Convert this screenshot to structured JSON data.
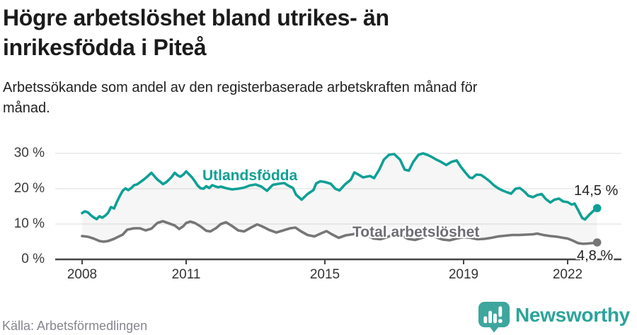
{
  "header": {
    "title_lines": [
      "Högre arbetslöshet bland utrikes- än",
      "inrikesfödda i Piteå"
    ],
    "subtitle_lines": [
      "Arbetssökande som andel av den registerbaserade arbetskraften månad för",
      "månad."
    ]
  },
  "chart_data": {
    "type": "line",
    "title": "Högre arbetslöshet bland utrikes- än inrikesfödda i Piteå",
    "subtitle": "Arbetssökande som andel av den registerbaserade arbetskraften månad för månad.",
    "unit": "%",
    "grid": true,
    "legend_position": "inline-labels",
    "x_axis": {
      "range": [
        2008.0,
        2023.0
      ],
      "ticks": [
        2008,
        2011,
        2015,
        2019,
        2022
      ],
      "tick_labels": [
        "2008",
        "2011",
        "2015",
        "2019",
        "2022"
      ]
    },
    "y_axis": {
      "range": [
        0,
        32
      ],
      "ticks": [
        0,
        10,
        20,
        30
      ],
      "tick_labels": [
        "0 %",
        "10 %",
        "20 %",
        "30 %"
      ]
    },
    "colors": {
      "grid": "#e3e3e3",
      "axis": "#454545",
      "fill_between": "rgba(130,130,130,0.07)"
    },
    "series": [
      {
        "name": "Utlandsfödda",
        "color": "#0fa095",
        "label_color": "#0fa095",
        "end_label": "14,5 %",
        "end_value": 14.5,
        "points": [
          [
            2008.0,
            13.1
          ],
          [
            2008.08,
            13.6
          ],
          [
            2008.17,
            13.3
          ],
          [
            2008.25,
            12.5
          ],
          [
            2008.33,
            11.9
          ],
          [
            2008.42,
            11.4
          ],
          [
            2008.5,
            12.2
          ],
          [
            2008.58,
            11.8
          ],
          [
            2008.67,
            12.4
          ],
          [
            2008.75,
            13.2
          ],
          [
            2008.83,
            14.8
          ],
          [
            2008.92,
            14.4
          ],
          [
            2009.0,
            16.2
          ],
          [
            2009.08,
            17.8
          ],
          [
            2009.17,
            19.4
          ],
          [
            2009.25,
            20.1
          ],
          [
            2009.33,
            19.6
          ],
          [
            2009.42,
            20.2
          ],
          [
            2009.5,
            21.0
          ],
          [
            2009.58,
            21.2
          ],
          [
            2009.67,
            21.8
          ],
          [
            2009.75,
            22.4
          ],
          [
            2009.83,
            23.0
          ],
          [
            2009.92,
            23.8
          ],
          [
            2010.0,
            24.5
          ],
          [
            2010.08,
            23.6
          ],
          [
            2010.17,
            22.6
          ],
          [
            2010.25,
            22.0
          ],
          [
            2010.33,
            21.3
          ],
          [
            2010.42,
            21.8
          ],
          [
            2010.5,
            22.5
          ],
          [
            2010.58,
            23.3
          ],
          [
            2010.67,
            24.5
          ],
          [
            2010.75,
            23.8
          ],
          [
            2010.83,
            23.4
          ],
          [
            2010.92,
            24.0
          ],
          [
            2011.0,
            24.9
          ],
          [
            2011.08,
            24.1
          ],
          [
            2011.17,
            23.2
          ],
          [
            2011.25,
            22.1
          ],
          [
            2011.33,
            20.9
          ],
          [
            2011.42,
            20.1
          ],
          [
            2011.5,
            20.0
          ],
          [
            2011.58,
            20.7
          ],
          [
            2011.67,
            20.2
          ],
          [
            2011.75,
            21.0
          ],
          [
            2011.83,
            20.7
          ],
          [
            2011.92,
            20.4
          ],
          [
            2012.0,
            20.6
          ],
          [
            2012.17,
            20.1
          ],
          [
            2012.33,
            19.8
          ],
          [
            2012.5,
            20.0
          ],
          [
            2012.67,
            20.3
          ],
          [
            2012.83,
            20.9
          ],
          [
            2013.0,
            21.2
          ],
          [
            2013.17,
            20.6
          ],
          [
            2013.33,
            19.4
          ],
          [
            2013.5,
            21.1
          ],
          [
            2013.67,
            21.4
          ],
          [
            2013.83,
            21.6
          ],
          [
            2013.92,
            21.0
          ],
          [
            2014.08,
            20.2
          ],
          [
            2014.17,
            18.3
          ],
          [
            2014.33,
            16.9
          ],
          [
            2014.5,
            18.5
          ],
          [
            2014.67,
            19.6
          ],
          [
            2014.75,
            21.5
          ],
          [
            2014.87,
            22.1
          ],
          [
            2015.0,
            21.9
          ],
          [
            2015.17,
            21.4
          ],
          [
            2015.3,
            20.0
          ],
          [
            2015.42,
            19.5
          ],
          [
            2015.58,
            21.2
          ],
          [
            2015.75,
            22.6
          ],
          [
            2015.85,
            24.6
          ],
          [
            2015.95,
            24.1
          ],
          [
            2016.1,
            23.2
          ],
          [
            2016.3,
            23.6
          ],
          [
            2016.42,
            23.0
          ],
          [
            2016.58,
            25.6
          ],
          [
            2016.7,
            28.2
          ],
          [
            2016.85,
            29.6
          ],
          [
            2017.0,
            29.8
          ],
          [
            2017.17,
            28.2
          ],
          [
            2017.3,
            25.4
          ],
          [
            2017.42,
            25.1
          ],
          [
            2017.55,
            27.6
          ],
          [
            2017.7,
            29.6
          ],
          [
            2017.83,
            30.0
          ],
          [
            2017.95,
            29.6
          ],
          [
            2018.08,
            29.0
          ],
          [
            2018.2,
            28.3
          ],
          [
            2018.35,
            27.6
          ],
          [
            2018.5,
            26.7
          ],
          [
            2018.65,
            27.6
          ],
          [
            2018.8,
            28.0
          ],
          [
            2018.92,
            26.2
          ],
          [
            2019.05,
            24.6
          ],
          [
            2019.17,
            23.2
          ],
          [
            2019.25,
            23.0
          ],
          [
            2019.37,
            24.0
          ],
          [
            2019.5,
            23.9
          ],
          [
            2019.62,
            23.1
          ],
          [
            2019.75,
            22.1
          ],
          [
            2019.87,
            21.0
          ],
          [
            2020.0,
            20.1
          ],
          [
            2020.12,
            19.5
          ],
          [
            2020.25,
            19.0
          ],
          [
            2020.37,
            18.6
          ],
          [
            2020.5,
            20.0
          ],
          [
            2020.62,
            20.2
          ],
          [
            2020.75,
            19.2
          ],
          [
            2020.87,
            18.0
          ],
          [
            2021.0,
            17.6
          ],
          [
            2021.12,
            18.2
          ],
          [
            2021.25,
            18.5
          ],
          [
            2021.37,
            17.1
          ],
          [
            2021.5,
            16.1
          ],
          [
            2021.62,
            16.9
          ],
          [
            2021.75,
            17.2
          ],
          [
            2021.87,
            16.4
          ],
          [
            2022.0,
            16.2
          ],
          [
            2022.12,
            15.5
          ],
          [
            2022.2,
            15.8
          ],
          [
            2022.3,
            14.0
          ],
          [
            2022.42,
            11.7
          ],
          [
            2022.5,
            11.3
          ],
          [
            2022.62,
            12.6
          ],
          [
            2022.75,
            13.8
          ],
          [
            2022.85,
            14.5
          ]
        ]
      },
      {
        "name": "Total arbetslöshet",
        "color": "#767676",
        "label_color": "#6d6d75",
        "end_label": "4,8 %",
        "end_value": 4.8,
        "points": [
          [
            2008.0,
            6.6
          ],
          [
            2008.17,
            6.4
          ],
          [
            2008.33,
            5.9
          ],
          [
            2008.5,
            5.2
          ],
          [
            2008.62,
            5.0
          ],
          [
            2008.75,
            5.2
          ],
          [
            2008.92,
            5.8
          ],
          [
            2009.0,
            6.2
          ],
          [
            2009.17,
            7.0
          ],
          [
            2009.3,
            8.4
          ],
          [
            2009.5,
            8.8
          ],
          [
            2009.67,
            8.8
          ],
          [
            2009.83,
            8.2
          ],
          [
            2010.0,
            8.7
          ],
          [
            2010.17,
            10.3
          ],
          [
            2010.33,
            10.8
          ],
          [
            2010.5,
            10.2
          ],
          [
            2010.67,
            9.6
          ],
          [
            2010.8,
            8.6
          ],
          [
            2010.92,
            9.4
          ],
          [
            2011.0,
            10.3
          ],
          [
            2011.12,
            10.7
          ],
          [
            2011.25,
            10.3
          ],
          [
            2011.42,
            9.3
          ],
          [
            2011.58,
            8.1
          ],
          [
            2011.7,
            7.9
          ],
          [
            2011.87,
            8.9
          ],
          [
            2012.0,
            10.0
          ],
          [
            2012.15,
            10.5
          ],
          [
            2012.33,
            9.4
          ],
          [
            2012.5,
            8.2
          ],
          [
            2012.67,
            7.9
          ],
          [
            2012.87,
            9.0
          ],
          [
            2013.05,
            9.9
          ],
          [
            2013.2,
            9.3
          ],
          [
            2013.4,
            8.3
          ],
          [
            2013.6,
            7.6
          ],
          [
            2013.8,
            8.2
          ],
          [
            2014.0,
            8.8
          ],
          [
            2014.15,
            9.0
          ],
          [
            2014.3,
            8.0
          ],
          [
            2014.5,
            6.9
          ],
          [
            2014.7,
            6.5
          ],
          [
            2014.9,
            7.4
          ],
          [
            2015.05,
            8.0
          ],
          [
            2015.2,
            7.1
          ],
          [
            2015.4,
            6.1
          ],
          [
            2015.6,
            6.8
          ],
          [
            2015.8,
            7.1
          ],
          [
            2016.0,
            7.5
          ],
          [
            2016.2,
            6.9
          ],
          [
            2016.4,
            5.9
          ],
          [
            2016.6,
            5.7
          ],
          [
            2016.8,
            6.3
          ],
          [
            2017.0,
            7.1
          ],
          [
            2017.2,
            6.7
          ],
          [
            2017.4,
            5.8
          ],
          [
            2017.6,
            5.5
          ],
          [
            2017.8,
            6.1
          ],
          [
            2018.0,
            6.7
          ],
          [
            2018.2,
            6.3
          ],
          [
            2018.4,
            5.6
          ],
          [
            2018.6,
            5.4
          ],
          [
            2018.8,
            5.9
          ],
          [
            2019.0,
            6.3
          ],
          [
            2019.2,
            6.1
          ],
          [
            2019.4,
            5.7
          ],
          [
            2019.6,
            5.8
          ],
          [
            2019.8,
            6.1
          ],
          [
            2020.0,
            6.5
          ],
          [
            2020.2,
            6.7
          ],
          [
            2020.4,
            6.9
          ],
          [
            2020.6,
            6.9
          ],
          [
            2020.8,
            7.0
          ],
          [
            2021.0,
            7.1
          ],
          [
            2021.12,
            7.3
          ],
          [
            2021.3,
            6.9
          ],
          [
            2021.5,
            6.6
          ],
          [
            2021.7,
            6.4
          ],
          [
            2021.87,
            6.1
          ],
          [
            2022.0,
            5.9
          ],
          [
            2022.15,
            5.3
          ],
          [
            2022.3,
            4.6
          ],
          [
            2022.45,
            4.4
          ],
          [
            2022.6,
            4.5
          ],
          [
            2022.72,
            4.6
          ],
          [
            2022.85,
            4.8
          ]
        ]
      }
    ]
  },
  "source": {
    "label": "Källa: Arbetsförmedlingen"
  },
  "logo": {
    "text": "Newsworthy",
    "badge_color": "#3da69d",
    "text_color": "#2ba49a",
    "icon": "newsworthy-speech-bubble-chart-icon"
  }
}
